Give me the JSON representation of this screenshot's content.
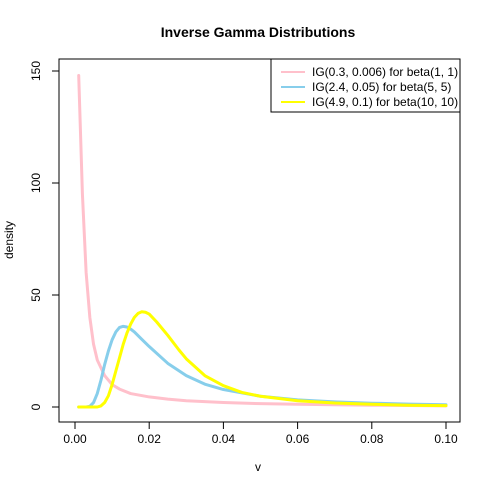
{
  "chart_data": {
    "type": "line",
    "title": "Inverse Gamma Distributions",
    "xlabel": "v",
    "ylabel": "density",
    "xlim": [
      0,
      0.1
    ],
    "ylim": [
      -5,
      155
    ],
    "x_ticks": [
      0.0,
      0.02,
      0.04,
      0.06,
      0.08,
      0.1
    ],
    "x_tick_labels": [
      "0.00",
      "0.02",
      "0.04",
      "0.06",
      "0.08",
      "0.10"
    ],
    "y_ticks": [
      0,
      50,
      100,
      150
    ],
    "y_tick_labels": [
      "0",
      "50",
      "100",
      "150"
    ],
    "grid": false,
    "legend_position": "top-right",
    "series": [
      {
        "name": "IG(0.3, 0.006) for beta(1, 1)",
        "color": "#FFC0CB",
        "x": [
          0.001,
          0.002,
          0.003,
          0.004,
          0.005,
          0.006,
          0.008,
          0.01,
          0.012,
          0.015,
          0.02,
          0.025,
          0.03,
          0.04,
          0.05,
          0.06,
          0.08,
          0.1
        ],
        "y": [
          148,
          95,
          60,
          40,
          28,
          21,
          14,
          10,
          8,
          6,
          4.5,
          3.5,
          2.8,
          2.0,
          1.5,
          1.2,
          0.8,
          0.5
        ]
      },
      {
        "name": "IG(2.4, 0.05) for beta(5, 5)",
        "color": "#87CEEB",
        "x": [
          0.001,
          0.003,
          0.004,
          0.005,
          0.006,
          0.007,
          0.008,
          0.009,
          0.01,
          0.011,
          0.012,
          0.013,
          0.014,
          0.015,
          0.016,
          0.018,
          0.02,
          0.025,
          0.03,
          0.035,
          0.04,
          0.05,
          0.06,
          0.07,
          0.08,
          0.09,
          0.1
        ],
        "y": [
          0,
          0,
          0.3,
          2,
          6,
          12,
          19,
          25,
          30,
          33.5,
          35.5,
          36,
          35.7,
          34.8,
          33.5,
          30.2,
          27,
          19.5,
          14,
          10.2,
          7.8,
          4.8,
          3.2,
          2.3,
          1.7,
          1.3,
          1.0
        ]
      },
      {
        "name": "IG(4.9, 0.1) for beta(10, 10)",
        "color": "#FFFF00",
        "x": [
          0.001,
          0.006,
          0.007,
          0.008,
          0.009,
          0.01,
          0.011,
          0.012,
          0.013,
          0.014,
          0.015,
          0.016,
          0.017,
          0.018,
          0.019,
          0.02,
          0.022,
          0.025,
          0.028,
          0.03,
          0.035,
          0.04,
          0.045,
          0.05,
          0.06,
          0.07,
          0.08,
          0.09,
          0.1
        ],
        "y": [
          0,
          0,
          0.5,
          2,
          5,
          10,
          16,
          22,
          28,
          33,
          37,
          40,
          41.8,
          42.5,
          42.3,
          41.5,
          38,
          32,
          25.5,
          21.5,
          14,
          9.5,
          6.5,
          4.8,
          2.8,
          1.8,
          1.2,
          0.8,
          0.6
        ]
      }
    ]
  }
}
